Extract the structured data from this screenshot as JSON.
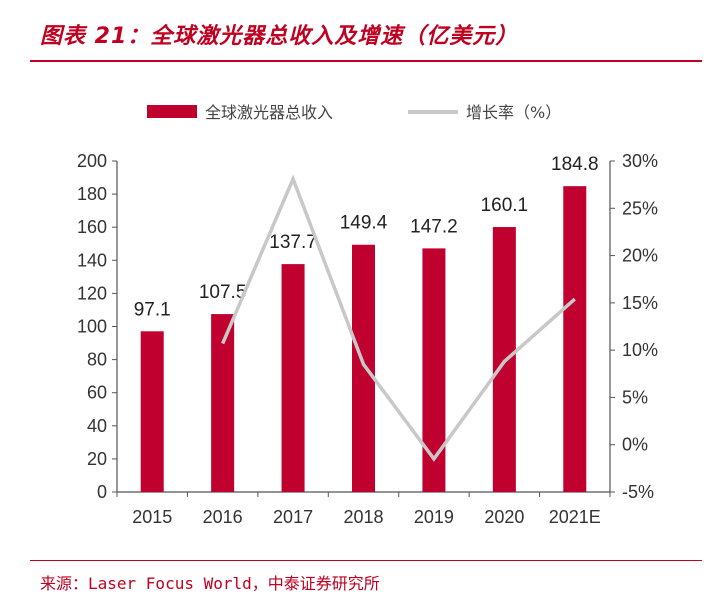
{
  "header": {
    "title": "图表 21：全球激光器总收入及增速（亿美元）"
  },
  "footer": {
    "source": "来源：Laser Focus World，中泰证券研究所"
  },
  "colors": {
    "bar": "#c0002f",
    "line": "#c8c8c8",
    "accent": "#c00020"
  },
  "chart_data": {
    "type": "bar",
    "categories": [
      "2015",
      "2016",
      "2017",
      "2018",
      "2019",
      "2020",
      "2021E"
    ],
    "series": [
      {
        "name": "全球激光器总收入",
        "type": "bar",
        "axis": "left",
        "values": [
          97.1,
          107.5,
          137.7,
          149.4,
          147.2,
          160.1,
          184.8
        ]
      },
      {
        "name": "增长率（%）",
        "type": "line",
        "axis": "right",
        "values": [
          null,
          10.7,
          28.1,
          8.5,
          -1.5,
          8.8,
          15.4
        ]
      }
    ],
    "data_labels": [
      "97.1",
      "107.5",
      "137.7",
      "149.4",
      "147.2",
      "160.1",
      "184.8"
    ],
    "y_left": {
      "min": 0,
      "max": 200,
      "ticks": [
        "0",
        "20",
        "40",
        "60",
        "80",
        "100",
        "120",
        "140",
        "160",
        "180",
        "200"
      ]
    },
    "y_right": {
      "min": -5,
      "max": 30,
      "ticks": [
        "-5%",
        "0%",
        "5%",
        "10%",
        "15%",
        "20%",
        "25%",
        "30%"
      ]
    },
    "legend": {
      "position": "top"
    }
  }
}
